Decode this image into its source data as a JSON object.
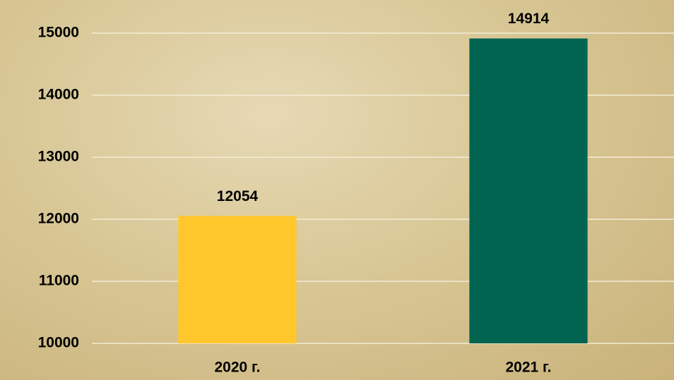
{
  "chart_data": {
    "type": "bar",
    "categories": [
      "2020 г.",
      "2021 г."
    ],
    "values": [
      12054,
      14914
    ],
    "colors": [
      "#ffc72c",
      "#006450"
    ],
    "ylim": [
      10000,
      15000
    ],
    "yticks": [
      10000,
      11000,
      12000,
      13000,
      14000,
      15000
    ],
    "grid": true
  }
}
